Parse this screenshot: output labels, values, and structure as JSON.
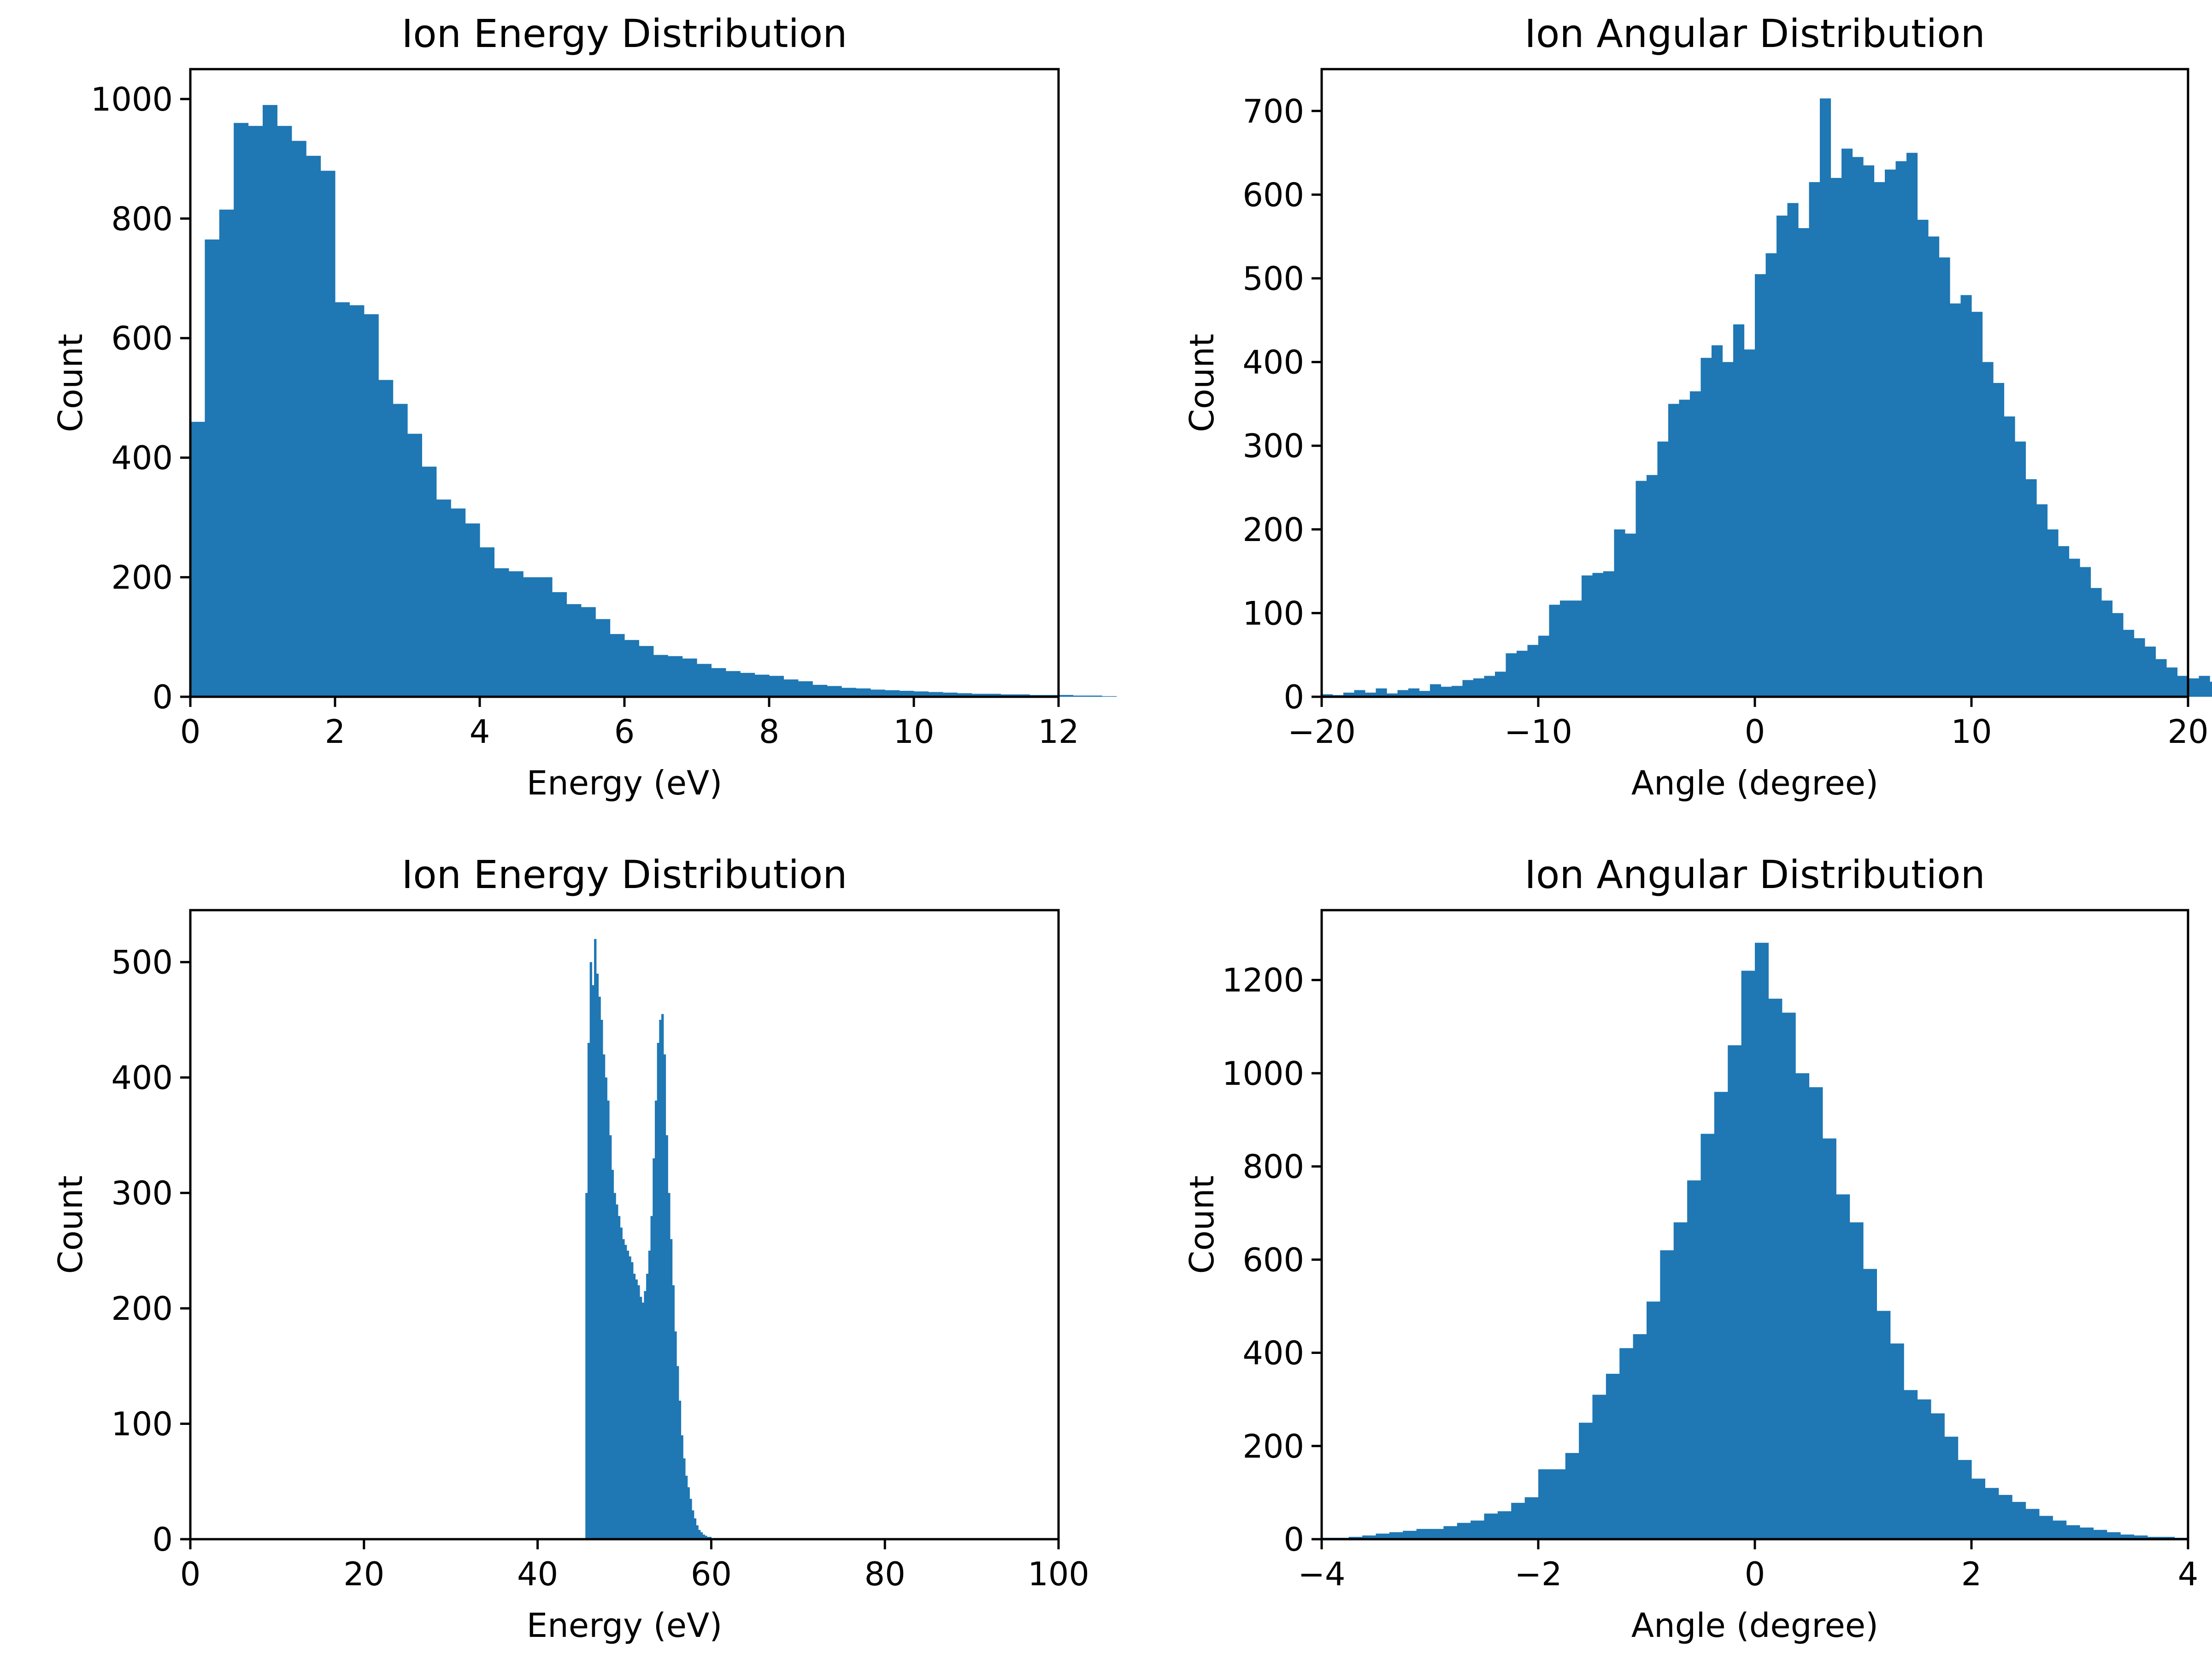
{
  "colors": {
    "bar": "#1f77b4",
    "axis": "#000000",
    "background": "#ffffff"
  },
  "chart_data": [
    {
      "type": "bar",
      "subtype": "histogram",
      "title": "Ion Energy Distribution",
      "xlabel": "Energy (eV)",
      "ylabel": "Count",
      "xlim": [
        0,
        12
      ],
      "ylim": [
        0,
        1050
      ],
      "xticks": [
        0,
        2,
        4,
        6,
        8,
        10,
        12
      ],
      "yticks": [
        0,
        200,
        400,
        600,
        800,
        1000
      ],
      "grid": false,
      "bin_start": 0,
      "bin_width": 0.2,
      "values": [
        460,
        765,
        815,
        960,
        955,
        990,
        955,
        930,
        905,
        880,
        660,
        655,
        640,
        530,
        490,
        440,
        385,
        330,
        315,
        290,
        250,
        215,
        210,
        200,
        200,
        175,
        155,
        150,
        130,
        105,
        95,
        85,
        70,
        68,
        64,
        55,
        48,
        43,
        40,
        37,
        35,
        29,
        26,
        20,
        18,
        15,
        14,
        12,
        11,
        10,
        9,
        8,
        7,
        6,
        5,
        5,
        4,
        4,
        3,
        3,
        3,
        2,
        2,
        1
      ]
    },
    {
      "type": "bar",
      "subtype": "histogram",
      "title": "Ion Angular Distribution",
      "xlabel": "Angle (degree)",
      "ylabel": "Count",
      "xlim": [
        -20,
        20
      ],
      "ylim": [
        0,
        750
      ],
      "xticks": [
        -20,
        -10,
        0,
        10,
        20
      ],
      "xtick_labels": [
        "−20",
        "−10",
        "0",
        "10",
        "20"
      ],
      "yticks": [
        0,
        100,
        200,
        300,
        400,
        500,
        600,
        700
      ],
      "grid": false,
      "bin_start": -20,
      "bin_width": 0.5,
      "values": [
        3,
        2,
        5,
        8,
        5,
        10,
        4,
        8,
        10,
        7,
        15,
        12,
        13,
        20,
        22,
        25,
        30,
        52,
        55,
        62,
        73,
        110,
        115,
        115,
        145,
        148,
        150,
        200,
        195,
        258,
        265,
        305,
        350,
        355,
        365,
        405,
        420,
        400,
        445,
        415,
        505,
        530,
        575,
        590,
        560,
        615,
        715,
        620,
        655,
        645,
        635,
        615,
        630,
        640,
        650,
        570,
        550,
        525,
        470,
        480,
        460,
        400,
        375,
        335,
        305,
        260,
        230,
        200,
        180,
        165,
        155,
        130,
        115,
        100,
        80,
        70,
        60,
        45,
        35,
        25,
        22,
        25,
        18,
        12,
        10,
        8,
        6,
        12,
        5,
        4
      ]
    },
    {
      "type": "bar",
      "subtype": "histogram",
      "title": "Ion Energy Distribution",
      "xlabel": "Energy (eV)",
      "ylabel": "Count",
      "xlim": [
        0,
        100
      ],
      "ylim": [
        0,
        545
      ],
      "xticks": [
        0,
        20,
        40,
        60,
        80,
        100
      ],
      "yticks": [
        0,
        100,
        200,
        300,
        400,
        500
      ],
      "grid": false,
      "bin_start": 45.5,
      "bin_width": 0.25,
      "values": [
        300,
        430,
        500,
        480,
        520,
        490,
        470,
        450,
        420,
        400,
        380,
        350,
        320,
        300,
        290,
        280,
        270,
        260,
        255,
        250,
        245,
        240,
        230,
        225,
        220,
        210,
        205,
        215,
        230,
        250,
        280,
        330,
        380,
        430,
        450,
        455,
        420,
        350,
        300,
        260,
        220,
        180,
        150,
        120,
        90,
        70,
        55,
        45,
        35,
        25,
        18,
        12,
        8,
        6,
        4,
        3,
        2,
        2,
        1
      ]
    },
    {
      "type": "bar",
      "subtype": "histogram",
      "title": "Ion Angular Distribution",
      "xlabel": "Angle (degree)",
      "ylabel": "Count",
      "xlim": [
        -4,
        4
      ],
      "ylim": [
        0,
        1350
      ],
      "xticks": [
        -4,
        -2,
        0,
        2,
        4
      ],
      "xtick_labels": [
        "−4",
        "−2",
        "0",
        "2",
        "4"
      ],
      "yticks": [
        0,
        200,
        400,
        600,
        800,
        1000,
        1200
      ],
      "grid": false,
      "bin_start": -4,
      "bin_width": 0.125,
      "values": [
        3,
        3,
        5,
        8,
        12,
        15,
        18,
        22,
        22,
        28,
        35,
        40,
        55,
        60,
        78,
        90,
        150,
        150,
        185,
        250,
        310,
        355,
        410,
        440,
        510,
        620,
        680,
        770,
        870,
        960,
        1060,
        1220,
        1280,
        1160,
        1130,
        1000,
        970,
        860,
        740,
        680,
        580,
        490,
        420,
        320,
        300,
        270,
        220,
        170,
        130,
        110,
        95,
        80,
        65,
        50,
        40,
        30,
        25,
        20,
        15,
        10,
        8,
        5,
        5,
        3
      ]
    }
  ]
}
